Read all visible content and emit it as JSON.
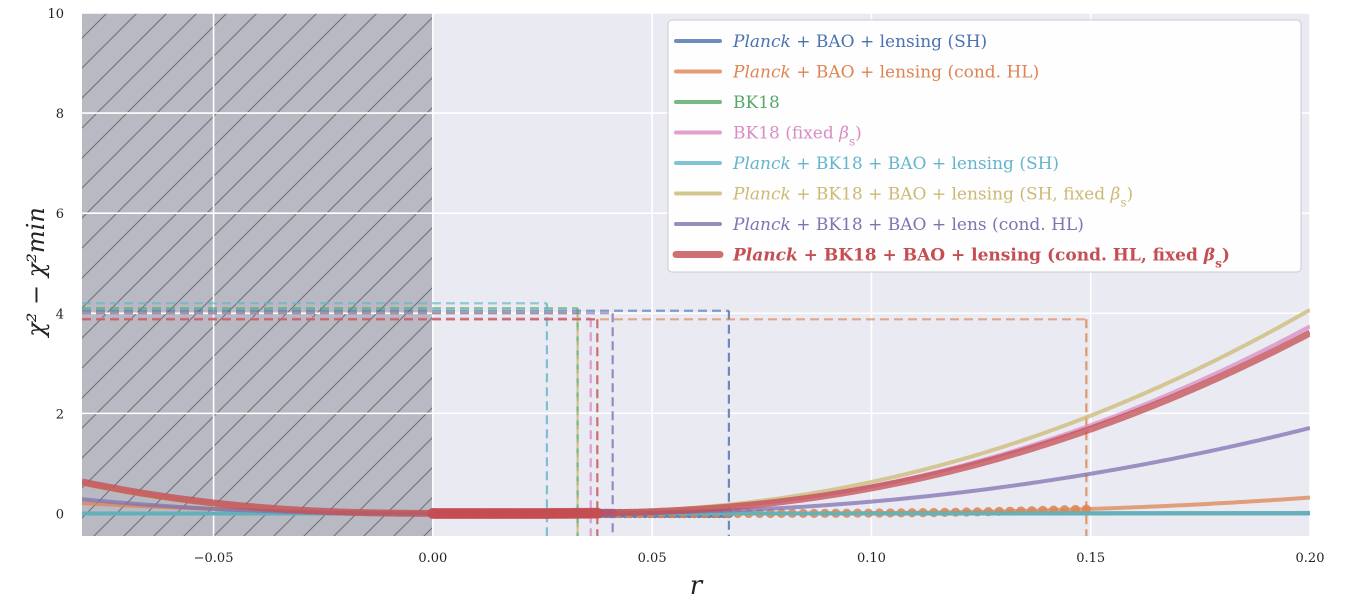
{
  "chart_data": {
    "type": "line",
    "xlabel": "r",
    "ylabel": "χ² − χ²min",
    "xlim": [
      -0.08,
      0.2
    ],
    "ylim": [
      -0.45,
      10
    ],
    "xticks": [
      {
        "value": -0.05,
        "label": "−0.05"
      },
      {
        "value": 0.0,
        "label": "0.00"
      },
      {
        "value": 0.05,
        "label": "0.05"
      },
      {
        "value": 0.1,
        "label": "0.10"
      },
      {
        "value": 0.15,
        "label": "0.15"
      },
      {
        "value": 0.2,
        "label": "0.20"
      }
    ],
    "yticks": [
      {
        "value": 0,
        "label": "0"
      },
      {
        "value": 2,
        "label": "2"
      },
      {
        "value": 4,
        "label": "4"
      },
      {
        "value": 6,
        "label": "6"
      },
      {
        "value": 8,
        "label": "8"
      },
      {
        "value": 10,
        "label": "10"
      }
    ],
    "grid": true,
    "excluded_region": {
      "x_from": -0.08,
      "x_to": 0.0,
      "fill": "hatched gray"
    },
    "legend_placement": "upper-right",
    "series": [
      {
        "label": "Planck + BAO + lensing (SH)",
        "parts": [
          {
            "text": "Planck",
            "italic": true,
            "bold": false
          },
          {
            "text": " + BAO + lensing (SH)",
            "italic": false,
            "bold": false
          }
        ],
        "color": "#4c72b0",
        "r_min": -0.027,
        "a": 0.8,
        "p": 0.5,
        "c": 3.41,
        "r_limit": 0.0675,
        "threshold": 4.05,
        "strong": false
      },
      {
        "label": "Planck + BAO + lensing (cond. HL)",
        "parts": [
          {
            "text": "Planck",
            "italic": true,
            "bold": false
          },
          {
            "text": " + BAO + lensing (cond. HL)",
            "italic": false,
            "bold": false
          }
        ],
        "color": "#dd8452",
        "r_min": 0.05,
        "a": 0.0065,
        "p": 0.5,
        "c": 39.58,
        "r_limit": 0.149,
        "threshold": 3.88,
        "strong": false
      },
      {
        "label": "BK18",
        "parts": [
          {
            "text": "BK18",
            "italic": false,
            "bold": false
          }
        ],
        "color": "#55a868",
        "r_min": -0.017,
        "a": 0.5,
        "p": 0.5,
        "c": 7.72,
        "r_limit": 0.033,
        "threshold": 4.1,
        "strong": false
      },
      {
        "label": "BK18 (fixed βs)",
        "parts": [
          {
            "text": "BK18 (fixed ",
            "italic": false,
            "bold": false
          },
          {
            "text": "β",
            "italic": true,
            "bold": false
          },
          {
            "text": "s",
            "italic": false,
            "bold": false,
            "sub": true
          },
          {
            "text": ")",
            "italic": false,
            "bold": false
          }
        ],
        "color": "#da8bc3",
        "r_min": 0.0125,
        "a": 0.0012,
        "p": 0.5,
        "c": 153.6,
        "r_limit": 0.036,
        "threshold": 3.9,
        "strong": false
      },
      {
        "label": "Planck + BK18 + BAO + lensing (SH)",
        "parts": [
          {
            "text": "Planck",
            "italic": true,
            "bold": false
          },
          {
            "text": " + BK18 + BAO + lensing (SH)",
            "italic": false,
            "bold": false
          }
        ],
        "color": "#64b5cd",
        "r_min": -0.019,
        "a": 0.45,
        "p": 0.5,
        "c": 9.3,
        "r_limit": 0.026,
        "threshold": 4.2,
        "strong": false
      },
      {
        "label": "Planck + BK18 + BAO + lensing (SH, fixed βs)",
        "parts": [
          {
            "text": "Planck",
            "italic": true,
            "bold": false
          },
          {
            "text": " + BK18 + BAO + lensing (SH, fixed ",
            "italic": false,
            "bold": false
          },
          {
            "text": "β",
            "italic": true,
            "bold": false
          },
          {
            "text": "s",
            "italic": false,
            "bold": false,
            "sub": true
          },
          {
            "text": ")",
            "italic": false,
            "bold": false
          }
        ],
        "color": "#ccb974",
        "r_min": 0.009,
        "a": 0.0012,
        "p": 0.5,
        "c": 160.0,
        "r_limit": 0.033,
        "threshold": 4.0,
        "strong": false
      },
      {
        "label": "Planck + BK18 + BAO + lens (cond. HL)",
        "parts": [
          {
            "text": "Planck",
            "italic": true,
            "bold": false
          },
          {
            "text": " + BK18 + BAO + lens (cond. HL)",
            "italic": false,
            "bold": false
          }
        ],
        "color": "#8172b3",
        "r_min": 0.013,
        "a": 0.00145,
        "p": 0.5,
        "c": 73.2,
        "r_limit": 0.041,
        "threshold": 4.0,
        "strong": false
      },
      {
        "label": "Planck + BK18 + BAO + lensing (cond. HL, fixed βs)",
        "parts": [
          {
            "text": "Planck",
            "italic": true,
            "bold": true
          },
          {
            "text": " + BK18 + BAO + lensing (cond. HL, fixed ",
            "italic": false,
            "bold": true
          },
          {
            "text": "β",
            "italic": true,
            "bold": true
          },
          {
            "text": "s",
            "italic": false,
            "bold": true,
            "sub": true
          },
          {
            "text": ")",
            "italic": false,
            "bold": true
          }
        ],
        "color": "#c44e52",
        "r_min": 0.0135,
        "a": 0.00125,
        "p": 0.5,
        "c": 151.2,
        "r_limit": 0.0375,
        "threshold": 3.88,
        "strong": true
      }
    ]
  }
}
